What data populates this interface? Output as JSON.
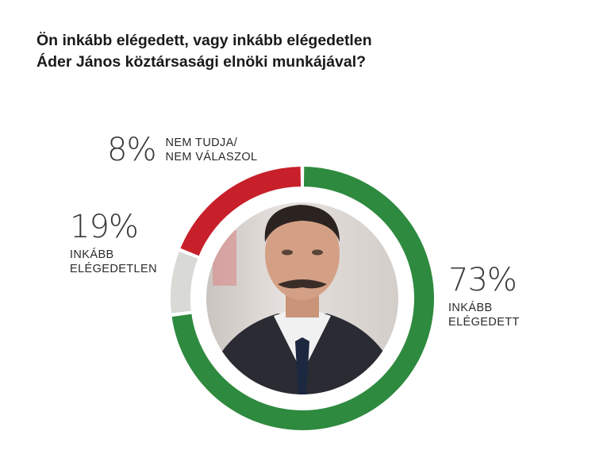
{
  "chart_data": {
    "type": "donut",
    "title_line1": "Ön inkább elégedett, vagy inkább elégedetlen",
    "title_line2": "Áder János köztársasági elnöki munkájával?",
    "slices": [
      {
        "pct_label": "73%",
        "value": 73,
        "label_line1": "INKÁBB",
        "label_line2": "ELÉGEDETT",
        "color": "#2e8a3e"
      },
      {
        "pct_label": "8%",
        "value": 8,
        "label_line1": "NEM TUDJA/",
        "label_line2": "NEM VÁLASZOL",
        "color": "#d9d9d6"
      },
      {
        "pct_label": "19%",
        "value": 19,
        "label_line1": "INKÁBB",
        "label_line2": "ELÉGEDETLEN",
        "color": "#c8202a"
      }
    ]
  }
}
